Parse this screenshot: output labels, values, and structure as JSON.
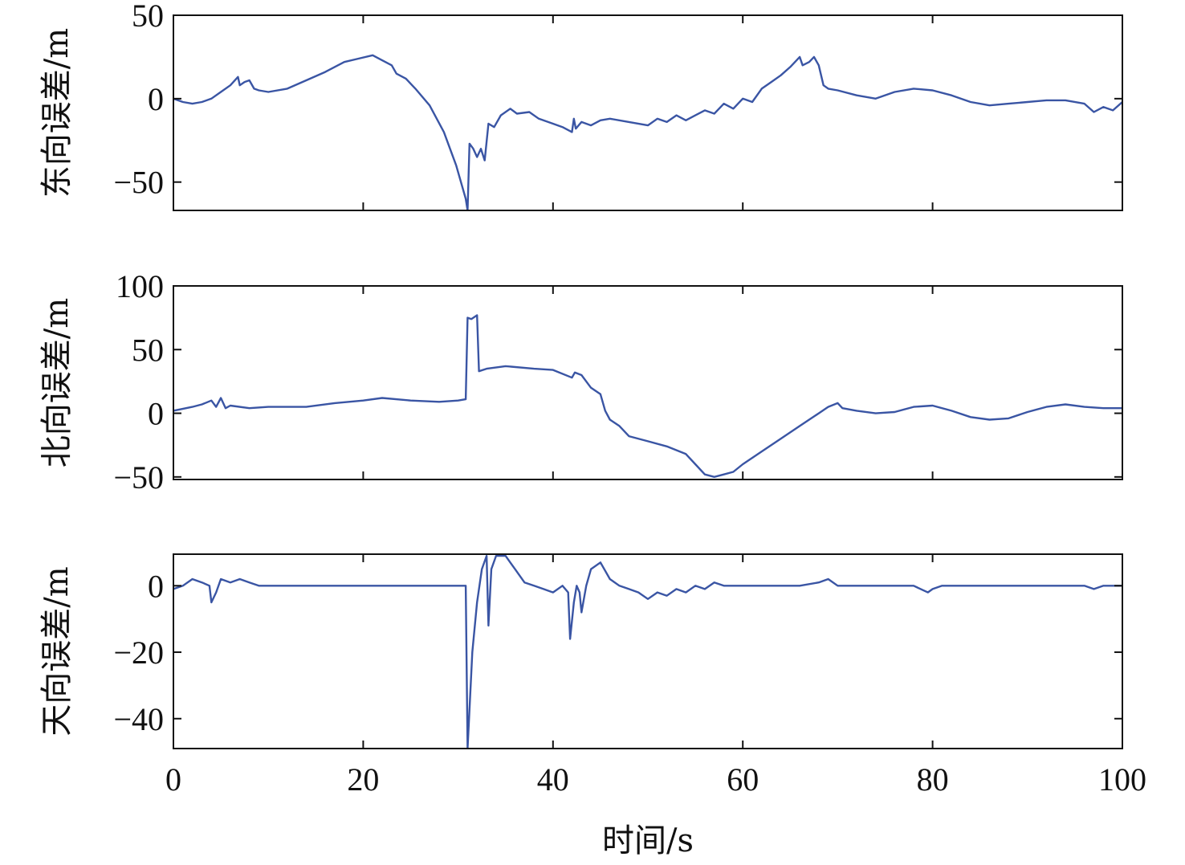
{
  "chart_data": {
    "type": "line",
    "layout": "3 stacked panels sharing x axis",
    "xlabel": "时间/s",
    "x_ticks": [
      "0",
      "20",
      "40",
      "60",
      "80",
      "100"
    ],
    "xlim": [
      0,
      100
    ],
    "grid": false,
    "line_color": "#3a55a4",
    "panels": [
      {
        "ylabel": "东向误差/m",
        "ylim": [
          -67,
          50
        ],
        "y_ticks": [
          {
            "value": 50,
            "label": "50"
          },
          {
            "value": 0,
            "label": "0"
          },
          {
            "value": -50,
            "label": "−50"
          }
        ],
        "series": [
          {
            "points": [
              [
                0,
                0
              ],
              [
                1,
                -2
              ],
              [
                2,
                -3
              ],
              [
                3,
                -2
              ],
              [
                4,
                0
              ],
              [
                5,
                4
              ],
              [
                6,
                8
              ],
              [
                6.8,
                13
              ],
              [
                7,
                8
              ],
              [
                7.5,
                10
              ],
              [
                8,
                11
              ],
              [
                8.5,
                6
              ],
              [
                9,
                5
              ],
              [
                10,
                4
              ],
              [
                12,
                6
              ],
              [
                14,
                11
              ],
              [
                16,
                16
              ],
              [
                18,
                22
              ],
              [
                19.5,
                24
              ],
              [
                21,
                26
              ],
              [
                22,
                23
              ],
              [
                23,
                20
              ],
              [
                23.5,
                15
              ],
              [
                24.5,
                12
              ],
              [
                25.5,
                6
              ],
              [
                27,
                -4
              ],
              [
                28.5,
                -20
              ],
              [
                29.8,
                -40
              ],
              [
                30.8,
                -60
              ],
              [
                31,
                -67
              ],
              [
                31.2,
                -27
              ],
              [
                31.6,
                -30
              ],
              [
                32,
                -35
              ],
              [
                32.4,
                -30
              ],
              [
                32.8,
                -37
              ],
              [
                33.2,
                -15
              ],
              [
                33.8,
                -17
              ],
              [
                34.5,
                -10
              ],
              [
                35.5,
                -6
              ],
              [
                36.2,
                -9
              ],
              [
                37.5,
                -8
              ],
              [
                38.5,
                -12
              ],
              [
                40,
                -15
              ],
              [
                41,
                -17
              ],
              [
                42,
                -20
              ],
              [
                42.2,
                -12
              ],
              [
                42.4,
                -18
              ],
              [
                43,
                -14
              ],
              [
                44,
                -16
              ],
              [
                45,
                -13
              ],
              [
                46,
                -12
              ],
              [
                48,
                -14
              ],
              [
                50,
                -16
              ],
              [
                51,
                -12
              ],
              [
                52,
                -14
              ],
              [
                53,
                -10
              ],
              [
                54,
                -13
              ],
              [
                55,
                -10
              ],
              [
                56,
                -7
              ],
              [
                57,
                -9
              ],
              [
                58,
                -3
              ],
              [
                59,
                -6
              ],
              [
                60,
                0
              ],
              [
                61,
                -2
              ],
              [
                62,
                6
              ],
              [
                63,
                10
              ],
              [
                64,
                14
              ],
              [
                65,
                19
              ],
              [
                66,
                25
              ],
              [
                66.3,
                20
              ],
              [
                67,
                22
              ],
              [
                67.5,
                25
              ],
              [
                68,
                20
              ],
              [
                68.5,
                8
              ],
              [
                69,
                6
              ],
              [
                70,
                5
              ],
              [
                72,
                2
              ],
              [
                74,
                0
              ],
              [
                76,
                4
              ],
              [
                78,
                6
              ],
              [
                80,
                5
              ],
              [
                82,
                2
              ],
              [
                84,
                -2
              ],
              [
                86,
                -4
              ],
              [
                88,
                -3
              ],
              [
                90,
                -2
              ],
              [
                92,
                -1
              ],
              [
                94,
                -1
              ],
              [
                96,
                -3
              ],
              [
                97,
                -8
              ],
              [
                98,
                -5
              ],
              [
                99,
                -7
              ],
              [
                100,
                -2
              ]
            ]
          }
        ]
      },
      {
        "ylabel": "北向误差/m",
        "ylim": [
          -52,
          100
        ],
        "y_ticks": [
          {
            "value": 100,
            "label": "100"
          },
          {
            "value": 50,
            "label": "50"
          },
          {
            "value": 0,
            "label": "0"
          },
          {
            "value": -50,
            "label": "−50"
          }
        ],
        "series": [
          {
            "points": [
              [
                0,
                2
              ],
              [
                2,
                5
              ],
              [
                3,
                7
              ],
              [
                4,
                10
              ],
              [
                4.5,
                5
              ],
              [
                5,
                12
              ],
              [
                5.5,
                4
              ],
              [
                6,
                6
              ],
              [
                8,
                4
              ],
              [
                10,
                5
              ],
              [
                14,
                5
              ],
              [
                17,
                8
              ],
              [
                20,
                10
              ],
              [
                22,
                12
              ],
              [
                25,
                10
              ],
              [
                28,
                9
              ],
              [
                30,
                10
              ],
              [
                30.8,
                11
              ],
              [
                31,
                75
              ],
              [
                31.4,
                74
              ],
              [
                32,
                77
              ],
              [
                32.2,
                33
              ],
              [
                33,
                35
              ],
              [
                35,
                37
              ],
              [
                38,
                35
              ],
              [
                40,
                34
              ],
              [
                42,
                28
              ],
              [
                42.3,
                32
              ],
              [
                43,
                30
              ],
              [
                44,
                20
              ],
              [
                45,
                15
              ],
              [
                45.5,
                2
              ],
              [
                46,
                -5
              ],
              [
                47,
                -10
              ],
              [
                48,
                -18
              ],
              [
                50,
                -22
              ],
              [
                52,
                -26
              ],
              [
                54,
                -32
              ],
              [
                55,
                -40
              ],
              [
                56,
                -48
              ],
              [
                57,
                -50
              ],
              [
                58,
                -48
              ],
              [
                59,
                -46
              ],
              [
                60,
                -40
              ],
              [
                62,
                -30
              ],
              [
                64,
                -20
              ],
              [
                66,
                -10
              ],
              [
                67,
                -5
              ],
              [
                68,
                0
              ],
              [
                69,
                5
              ],
              [
                70,
                8
              ],
              [
                70.5,
                4
              ],
              [
                72,
                2
              ],
              [
                74,
                0
              ],
              [
                76,
                1
              ],
              [
                78,
                5
              ],
              [
                80,
                6
              ],
              [
                82,
                2
              ],
              [
                84,
                -3
              ],
              [
                86,
                -5
              ],
              [
                88,
                -4
              ],
              [
                90,
                1
              ],
              [
                92,
                5
              ],
              [
                94,
                7
              ],
              [
                96,
                5
              ],
              [
                98,
                4
              ],
              [
                100,
                4
              ]
            ]
          }
        ]
      },
      {
        "ylabel": "天向误差/m",
        "ylim": [
          -49,
          9.5
        ],
        "y_ticks": [
          {
            "value": 0,
            "label": "0"
          },
          {
            "value": -20,
            "label": "−20"
          },
          {
            "value": -40,
            "label": "−40"
          }
        ],
        "series": [
          {
            "points": [
              [
                0,
                -1
              ],
              [
                1,
                0
              ],
              [
                2,
                2
              ],
              [
                3,
                1
              ],
              [
                3.8,
                0
              ],
              [
                4,
                -5
              ],
              [
                4.5,
                -2
              ],
              [
                5,
                2
              ],
              [
                6,
                1
              ],
              [
                7,
                2
              ],
              [
                8,
                1
              ],
              [
                9,
                0
              ],
              [
                10,
                0
              ],
              [
                14,
                0
              ],
              [
                18,
                0
              ],
              [
                22,
                0
              ],
              [
                26,
                0
              ],
              [
                28,
                0
              ],
              [
                30,
                0
              ],
              [
                30.8,
                0
              ],
              [
                31,
                -49
              ],
              [
                31.5,
                -20
              ],
              [
                32,
                -5
              ],
              [
                32.5,
                5
              ],
              [
                33,
                9
              ],
              [
                33.2,
                -12
              ],
              [
                33.5,
                5
              ],
              [
                34,
                9
              ],
              [
                35,
                9
              ],
              [
                36,
                5
              ],
              [
                37,
                1
              ],
              [
                38,
                0
              ],
              [
                39,
                -1
              ],
              [
                40,
                -2
              ],
              [
                41,
                0
              ],
              [
                41.6,
                -2
              ],
              [
                41.8,
                -16
              ],
              [
                42.2,
                -5
              ],
              [
                42.5,
                0
              ],
              [
                42.8,
                -2
              ],
              [
                43,
                -8
              ],
              [
                43.5,
                0
              ],
              [
                44,
                5
              ],
              [
                45,
                7
              ],
              [
                46,
                2
              ],
              [
                47,
                0
              ],
              [
                48,
                -1
              ],
              [
                49,
                -2
              ],
              [
                50,
                -4
              ],
              [
                51,
                -2
              ],
              [
                52,
                -3
              ],
              [
                53,
                -1
              ],
              [
                54,
                -2
              ],
              [
                55,
                0
              ],
              [
                56,
                -1
              ],
              [
                57,
                1
              ],
              [
                58,
                0
              ],
              [
                60,
                0
              ],
              [
                62,
                0
              ],
              [
                64,
                0
              ],
              [
                66,
                0
              ],
              [
                68,
                1
              ],
              [
                69,
                2
              ],
              [
                70,
                0
              ],
              [
                72,
                0
              ],
              [
                76,
                0
              ],
              [
                78,
                0
              ],
              [
                79.5,
                -2
              ],
              [
                80,
                -1
              ],
              [
                81,
                0
              ],
              [
                84,
                0
              ],
              [
                88,
                0
              ],
              [
                92,
                0
              ],
              [
                96,
                0
              ],
              [
                97,
                -1
              ],
              [
                98,
                0
              ],
              [
                100,
                0
              ]
            ]
          }
        ]
      }
    ]
  }
}
